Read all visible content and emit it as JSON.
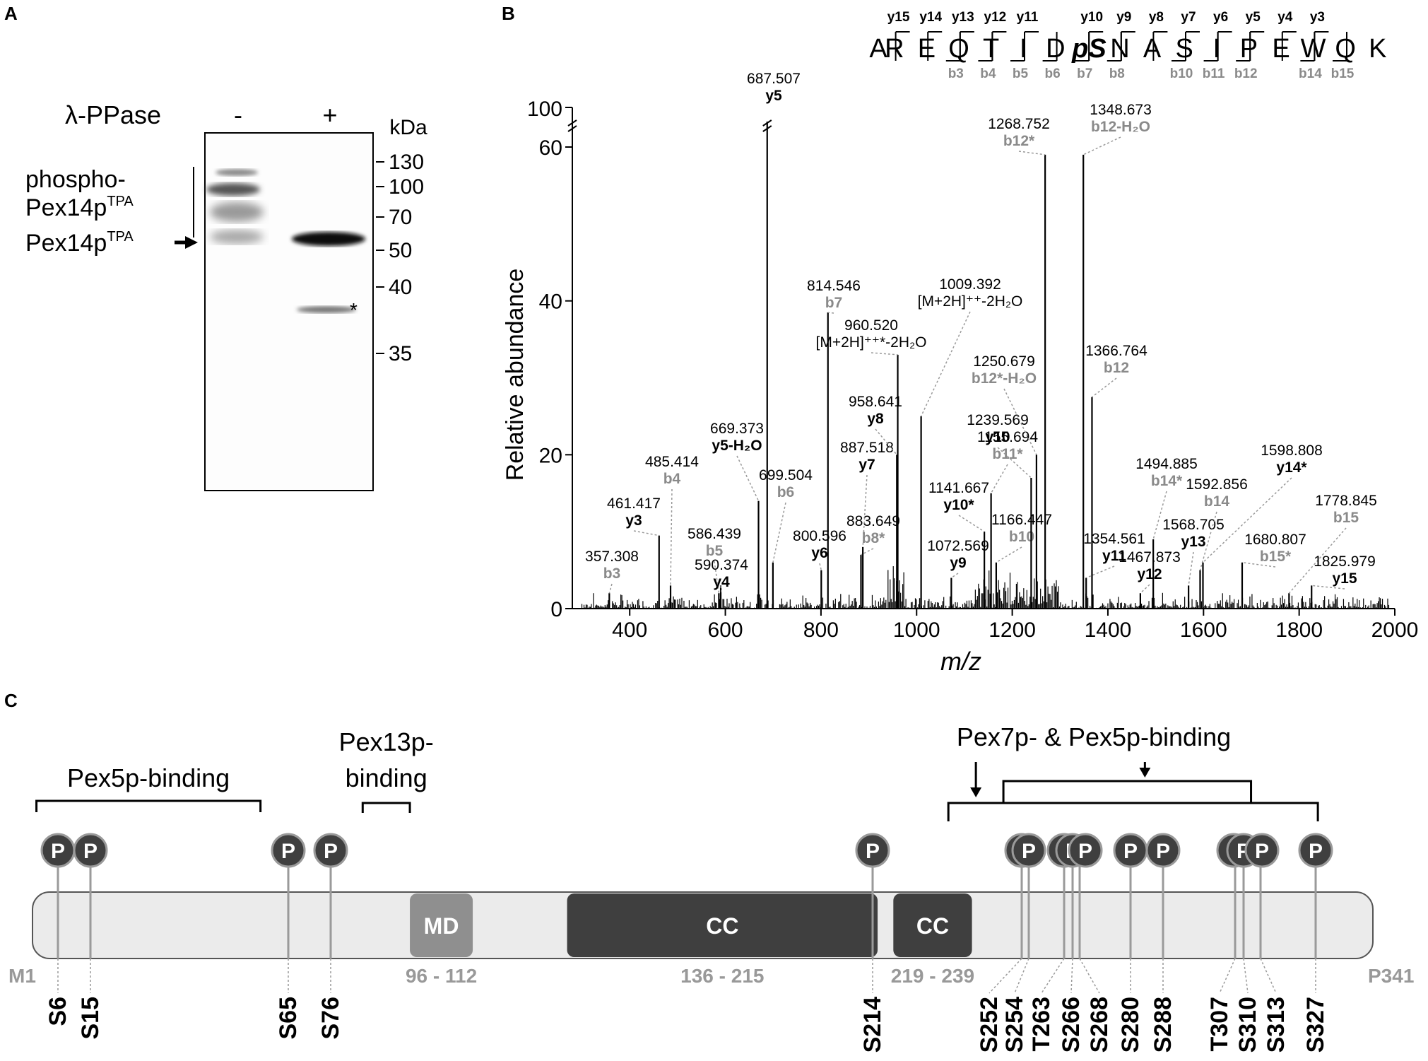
{
  "panel_labels": {
    "a": "A",
    "b": "B",
    "c": "C"
  },
  "panel_a": {
    "treatment_label": "λ-PPase",
    "lanes": [
      "-",
      "+"
    ],
    "unit": "kDa",
    "markers": [
      "130",
      "100",
      "70",
      "50",
      "40",
      "35"
    ],
    "band_label_phospho_1": "phospho-",
    "band_label_phospho_2": "Pex14p",
    "band_label_phospho_sup": "TPA",
    "band_label_unmod": "Pex14p",
    "band_label_unmod_sup": "TPA",
    "asterisk": "*"
  },
  "panel_b": {
    "sequence": [
      "A",
      "R",
      "E",
      "Q",
      "T",
      "I",
      "D",
      "pS",
      "N",
      "A",
      "S",
      "I",
      "P",
      "E",
      "W",
      "Q",
      "K"
    ],
    "y_ions": [
      {
        "label": "y15",
        "after": 1
      },
      {
        "label": "y14",
        "after": 2
      },
      {
        "label": "y13",
        "after": 3
      },
      {
        "label": "y12",
        "after": 4
      },
      {
        "label": "y11",
        "after": 5
      },
      {
        "label": "y10",
        "after": 7
      },
      {
        "label": "y9",
        "after": 8
      },
      {
        "label": "y8",
        "after": 9
      },
      {
        "label": "y7",
        "after": 10
      },
      {
        "label": "y6",
        "after": 11
      },
      {
        "label": "y5",
        "after": 12
      },
      {
        "label": "y4",
        "after": 13
      },
      {
        "label": "y3",
        "after": 14
      }
    ],
    "b_ions": [
      {
        "label": "b3",
        "after": 3
      },
      {
        "label": "b4",
        "after": 4
      },
      {
        "label": "b5",
        "after": 5
      },
      {
        "label": "b6",
        "after": 6
      },
      {
        "label": "b7",
        "after": 7
      },
      {
        "label": "b8",
        "after": 8
      },
      {
        "label": "b10",
        "after": 10
      },
      {
        "label": "b11",
        "after": 11
      },
      {
        "label": "b12",
        "after": 12
      },
      {
        "label": "b14",
        "after": 14
      },
      {
        "label": "b15",
        "after": 15
      }
    ],
    "chart_data": {
      "type": "bar",
      "xlabel": "m/z",
      "ylabel": "Relative abundance",
      "xlim": [
        280,
        2000
      ],
      "ylim": [
        0,
        65
      ],
      "y_break_label": "100",
      "xticks": [
        400,
        600,
        800,
        1000,
        1200,
        1400,
        1600,
        1800,
        2000
      ],
      "yticks": [
        0,
        20,
        40,
        60
      ],
      "peaks": [
        {
          "mz": 357.308,
          "ion": "b3",
          "intensity": 2,
          "type": "b"
        },
        {
          "mz": 461.417,
          "ion": "y3",
          "intensity": 9.5,
          "type": "y"
        },
        {
          "mz": 485.414,
          "ion": "b4",
          "intensity": 3,
          "type": "b"
        },
        {
          "mz": 586.439,
          "ion": "b5",
          "intensity": 2,
          "type": "b"
        },
        {
          "mz": 590.374,
          "ion": "y4",
          "intensity": 3,
          "type": "y"
        },
        {
          "mz": 669.373,
          "ion": "y5-H₂O",
          "intensity": 14,
          "type": "y"
        },
        {
          "mz": 687.507,
          "ion": "y5",
          "intensity": 100,
          "type": "y"
        },
        {
          "mz": 699.504,
          "ion": "b6",
          "intensity": 6,
          "type": "b"
        },
        {
          "mz": 800.596,
          "ion": "y6",
          "intensity": 5,
          "type": "y"
        },
        {
          "mz": 814.546,
          "ion": "b7",
          "intensity": 38.5,
          "type": "b"
        },
        {
          "mz": 883.649,
          "ion": "b8*",
          "intensity": 7,
          "type": "b"
        },
        {
          "mz": 887.518,
          "ion": "y7",
          "intensity": 8,
          "type": "y"
        },
        {
          "mz": 958.641,
          "ion": "y8",
          "intensity": 20,
          "type": "y"
        },
        {
          "mz": 960.52,
          "ion": "[M+2H]⁺⁺*-2H₂O",
          "intensity": 33,
          "type": "n"
        },
        {
          "mz": 1009.392,
          "ion": "[M+2H]⁺⁺-2H₂O",
          "intensity": 25,
          "type": "n"
        },
        {
          "mz": 1072.569,
          "ion": "y9",
          "intensity": 4,
          "type": "y"
        },
        {
          "mz": 1141.667,
          "ion": "y10*",
          "intensity": 10,
          "type": "y"
        },
        {
          "mz": 1155.694,
          "ion": "b11*",
          "intensity": 15,
          "type": "b"
        },
        {
          "mz": 1166.447,
          "ion": "b10",
          "intensity": 6,
          "type": "b"
        },
        {
          "mz": 1239.569,
          "ion": "y10",
          "intensity": 17,
          "type": "y"
        },
        {
          "mz": 1250.679,
          "ion": "b12*-H₂O",
          "intensity": 20,
          "type": "b"
        },
        {
          "mz": 1268.752,
          "ion": "b12*",
          "intensity": 59,
          "type": "b"
        },
        {
          "mz": 1348.673,
          "ion": "b12-H₂O",
          "intensity": 59,
          "type": "b"
        },
        {
          "mz": 1354.561,
          "ion": "y11",
          "intensity": 4,
          "type": "y"
        },
        {
          "mz": 1366.764,
          "ion": "b12",
          "intensity": 27.5,
          "type": "b"
        },
        {
          "mz": 1467.873,
          "ion": "y12",
          "intensity": 2,
          "type": "y"
        },
        {
          "mz": 1494.885,
          "ion": "b14*",
          "intensity": 9,
          "type": "b"
        },
        {
          "mz": 1568.705,
          "ion": "y13",
          "intensity": 3,
          "type": "y"
        },
        {
          "mz": 1592.856,
          "ion": "b14",
          "intensity": 5,
          "type": "b"
        },
        {
          "mz": 1598.808,
          "ion": "y14*",
          "intensity": 6,
          "type": "y"
        },
        {
          "mz": 1680.807,
          "ion": "b15*",
          "intensity": 6,
          "type": "b"
        },
        {
          "mz": 1778.845,
          "ion": "b15",
          "intensity": 2,
          "type": "b"
        },
        {
          "mz": 1825.979,
          "ion": "y15",
          "intensity": 3,
          "type": "y"
        }
      ]
    }
  },
  "panel_c": {
    "length": 341,
    "start_label": "M1",
    "end_label": "P341",
    "domains": [
      {
        "name": "MD",
        "start": 96,
        "end": 112,
        "range_label": "96 - 112",
        "color": "#8f8f8f"
      },
      {
        "name": "CC",
        "start": 136,
        "end": 215,
        "range_label": "136 - 215",
        "color": "#3f3f3f"
      },
      {
        "name": "CC",
        "start": 219,
        "end": 239,
        "range_label": "219 - 239",
        "color": "#3f3f3f"
      }
    ],
    "binding_regions": [
      {
        "label_lines": [
          "Pex5p-binding"
        ],
        "start": 1,
        "end": 58
      },
      {
        "label_lines": [
          "Pex13p-",
          "binding"
        ],
        "start": 84,
        "end": 96
      },
      {
        "label_lines": [
          "Pex7p- & Pex5p-binding"
        ],
        "start": 233,
        "end": 327
      }
    ],
    "phospho_symbol": "P",
    "sites": [
      "S6",
      "S15",
      "S65",
      "S76",
      "S214",
      "S252",
      "S254",
      "T263",
      "S266",
      "S268",
      "S280",
      "S288",
      "T307",
      "S310",
      "S313",
      "S327"
    ]
  }
}
